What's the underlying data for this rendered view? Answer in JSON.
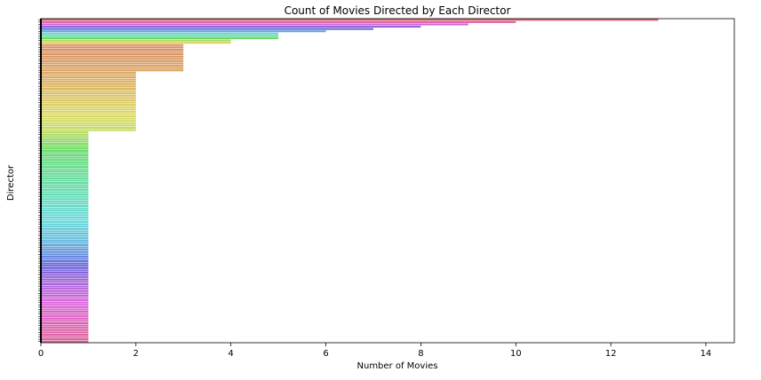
{
  "chart_data": {
    "type": "bar",
    "orientation": "horizontal",
    "title": "Count of Movies Directed by Each Director",
    "xlabel": "Number of Movies",
    "ylabel": "Director",
    "xlim": [
      0,
      14.6
    ],
    "xticks": [
      "0",
      "2",
      "4",
      "6",
      "8",
      "10",
      "12",
      "14"
    ],
    "grid": false,
    "legend": "none",
    "category_labels_legible": false,
    "value_groups": [
      {
        "value": 13,
        "count": 1
      },
      {
        "value": 10,
        "count": 1
      },
      {
        "value": 9,
        "count": 1
      },
      {
        "value": 8,
        "count": 1
      },
      {
        "value": 7,
        "count": 1
      },
      {
        "value": 6,
        "count": 1
      },
      {
        "value": 5,
        "count": 3
      },
      {
        "value": 4,
        "count": 2
      },
      {
        "value": 3,
        "count": 12
      },
      {
        "value": 2,
        "count": 26
      },
      {
        "value": 1,
        "count": 92
      }
    ]
  }
}
